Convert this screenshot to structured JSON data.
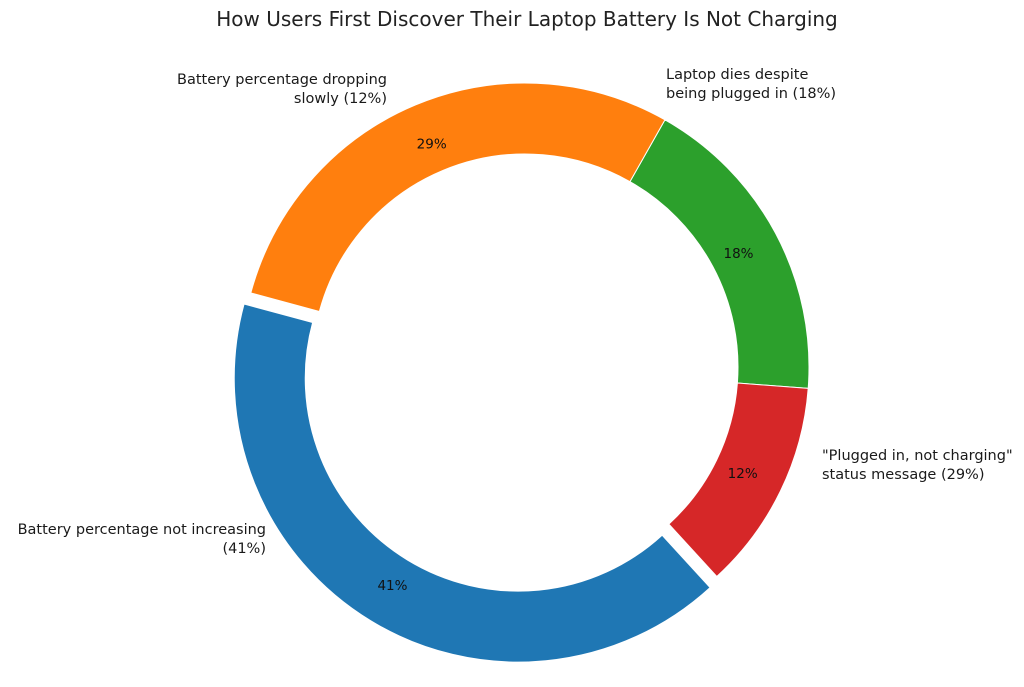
{
  "chart_data": {
    "type": "pie",
    "style": "donut",
    "title": "How Users First Discover Their Laptop Battery Is Not Charging",
    "slices": [
      {
        "pct_label": "18%",
        "value": 18,
        "color": "#2ca02c",
        "label_lines": [
          "Laptop dies despite",
          "being plugged in (18%)"
        ],
        "exploded": false
      },
      {
        "pct_label": "29%",
        "value": 29,
        "color": "#ff7f0e",
        "label_lines": [
          "\"Plugged in, not charging\"",
          "status message (29%)"
        ],
        "exploded": false
      },
      {
        "pct_label": "41%",
        "value": 41,
        "color": "#1f77b4",
        "label_lines": [
          "Battery percentage not increasing",
          "(41%)"
        ],
        "exploded": true
      },
      {
        "pct_label": "12%",
        "value": 12,
        "color": "#d62728",
        "label_lines": [
          "Battery percentage dropping",
          "slowly (12%)"
        ],
        "exploded": false
      }
    ]
  }
}
